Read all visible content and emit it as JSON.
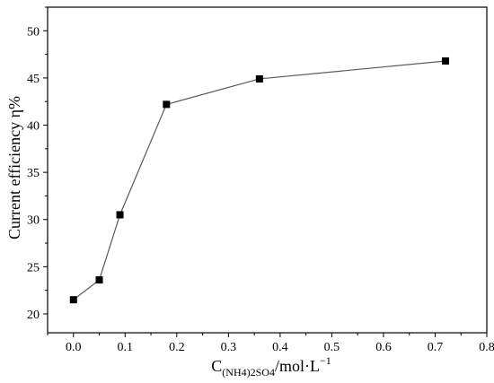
{
  "chart_data": {
    "type": "line",
    "title": "",
    "x": [
      0.0,
      0.05,
      0.09,
      0.18,
      0.36,
      0.72
    ],
    "series": [
      {
        "values": [
          21.5,
          23.6,
          30.5,
          42.2,
          44.9,
          46.8
        ]
      }
    ],
    "xlabel": {
      "main": "C",
      "subscript": "(NH4)2SO4",
      "unit": "/mol·L",
      "superscript": "−1"
    },
    "ylabel": "Current efficiency η%",
    "xlim": [
      -0.05,
      0.8
    ],
    "ylim": [
      18,
      52.5
    ],
    "xticks": [
      0.0,
      0.1,
      0.2,
      0.3,
      0.4,
      0.5,
      0.6,
      0.7,
      0.8
    ],
    "xtick_labels": [
      "0.0",
      "0.1",
      "0.2",
      "0.3",
      "0.4",
      "0.5",
      "0.6",
      "0.7",
      "0.8"
    ],
    "yticks": [
      20,
      25,
      30,
      35,
      40,
      45,
      50
    ],
    "ytick_labels": [
      "20",
      "25",
      "30",
      "35",
      "40",
      "45",
      "50"
    ],
    "marker": "square",
    "grid": false,
    "legend": "none",
    "line_color": "#5a5a5a",
    "marker_color": "#000000"
  }
}
